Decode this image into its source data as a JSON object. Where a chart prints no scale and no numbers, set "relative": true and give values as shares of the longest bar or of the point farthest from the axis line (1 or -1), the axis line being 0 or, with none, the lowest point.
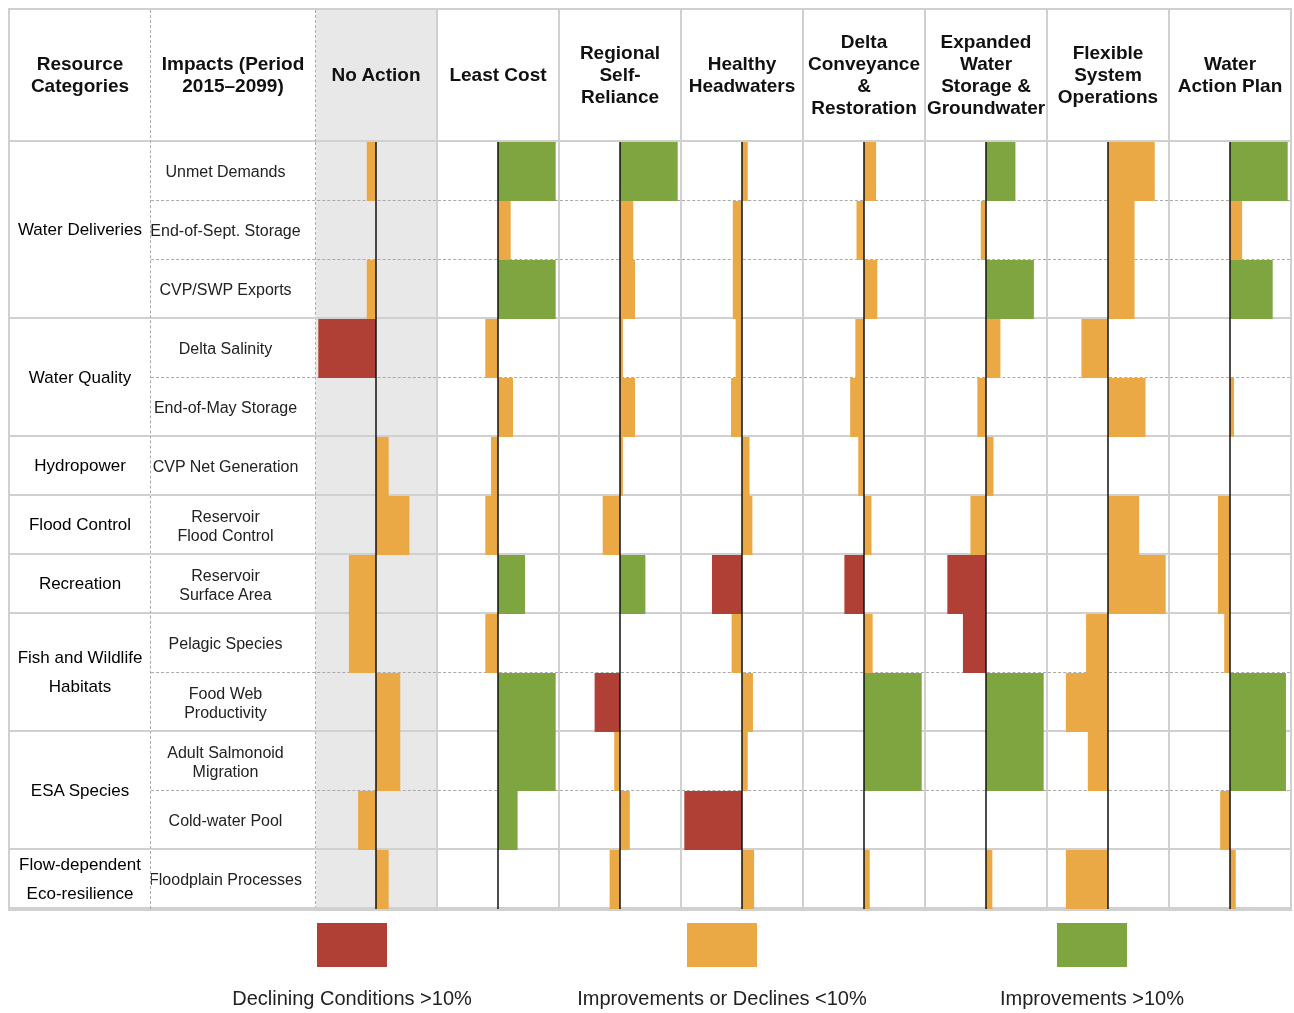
{
  "chart_data": [
    {
      "type": "bar",
      "orientation": "horizontal",
      "stacked": true,
      "relative": true,
      "tick_labels": "y",
      "title": "No Action",
      "ylabel": "Impacts (Period 2015–2099)",
      "annotations": [
        "Resource Categories",
        "Water Deliveries",
        "Water Quality",
        "Hydropower",
        "Flood Control",
        "Recreation",
        "Fish and Wildlife Habitats",
        "ESA Species",
        "Flow-dependent Eco-resilience"
      ],
      "categories": [
        "Unmet Demands",
        "End-of-Sept. Storage",
        "CVP/SWP Exports",
        "Delta Salinity",
        "End-of-May Storage",
        "CVP Net Generation",
        "Reservoir Flood Control",
        "Reservoir Surface Area",
        "Pelagic Species",
        "Food Web Productivity",
        "Adult Salmonoid Migration",
        "Cold-water Pool",
        "Floodplain Processes"
      ],
      "series": [
        {
          "color": "#b03f35",
          "values": [
            null,
            null,
            null,
            -1,
            null,
            null,
            null,
            null,
            null,
            null,
            null,
            null,
            null
          ]
        },
        {
          "color": "#eaa945",
          "values": [
            -0.16,
            null,
            -0.16,
            null,
            null,
            0.22,
            0.58,
            -0.47,
            -0.47,
            0.42,
            0.42,
            -0.31,
            0.22
          ]
        }
      ]
    },
    {
      "type": "bar",
      "orientation": "horizontal",
      "stacked": true,
      "relative": true,
      "tick_labels": false,
      "title": "Least Cost",
      "categories": [
        null,
        null,
        null,
        null,
        null,
        null,
        null,
        null,
        null,
        null,
        null,
        null,
        null
      ],
      "series": [
        {
          "color": "#eaa945",
          "values": [
            null,
            0.22,
            null,
            -0.22,
            0.26,
            -0.12,
            -0.22,
            null,
            -0.22,
            null,
            null,
            null,
            null
          ]
        },
        {
          "color": "#7ea53f",
          "values": [
            1,
            null,
            1,
            null,
            null,
            null,
            null,
            0.47,
            null,
            1,
            1,
            0.34,
            null
          ]
        }
      ]
    },
    {
      "type": "bar",
      "orientation": "horizontal",
      "stacked": true,
      "relative": true,
      "tick_labels": false,
      "title": "Regional Self-Reliance",
      "legend": "bottom",
      "categories": [
        null,
        null,
        null,
        null,
        null,
        null,
        null,
        null,
        null,
        null,
        null,
        null,
        null
      ],
      "series": [
        {
          "name": "Declining Conditions >10%",
          "color": "#b03f35",
          "values": [
            null,
            null,
            null,
            null,
            null,
            null,
            null,
            null,
            null,
            -0.44,
            null,
            null,
            null
          ]
        },
        {
          "name": "Improvements or Declines <10%",
          "color": "#eaa945",
          "values": [
            null,
            0.23,
            0.26,
            0.05,
            0.26,
            0.05,
            -0.3,
            null,
            null,
            null,
            -0.1,
            0.17,
            -0.18
          ]
        },
        {
          "name": "Improvements >10%",
          "color": "#7ea53f",
          "values": [
            1,
            null,
            null,
            null,
            null,
            null,
            null,
            0.44,
            null,
            null,
            null,
            null,
            null
          ]
        }
      ]
    },
    {
      "type": "bar",
      "orientation": "horizontal",
      "stacked": true,
      "relative": true,
      "tick_labels": false,
      "title": "Healthy Headwaters",
      "categories": [
        null,
        null,
        null,
        null,
        null,
        null,
        null,
        null,
        null,
        null,
        null,
        null,
        null
      ],
      "series": [
        {
          "color": "#b03f35",
          "values": [
            null,
            null,
            null,
            null,
            null,
            null,
            null,
            -0.52,
            null,
            null,
            null,
            -1,
            null
          ]
        },
        {
          "color": "#eaa945",
          "values": [
            0.1,
            -0.16,
            -0.16,
            -0.11,
            -0.19,
            0.13,
            0.18,
            null,
            -0.18,
            0.19,
            0.1,
            null,
            0.21
          ]
        }
      ]
    },
    {
      "type": "bar",
      "orientation": "horizontal",
      "stacked": true,
      "relative": true,
      "tick_labels": false,
      "title": "Delta Conveyance & Restoration",
      "categories": [
        null,
        null,
        null,
        null,
        null,
        null,
        null,
        null,
        null,
        null,
        null,
        null,
        null
      ],
      "series": [
        {
          "color": "#b03f35",
          "values": [
            null,
            null,
            null,
            null,
            null,
            null,
            null,
            -0.34,
            null,
            null,
            null,
            null,
            null
          ]
        },
        {
          "color": "#eaa945",
          "values": [
            0.21,
            -0.13,
            0.23,
            -0.15,
            -0.24,
            -0.1,
            0.13,
            null,
            0.15,
            null,
            null,
            null,
            0.1
          ]
        },
        {
          "color": "#7ea53f",
          "values": [
            null,
            null,
            null,
            null,
            null,
            null,
            null,
            null,
            null,
            1,
            1,
            null,
            null
          ]
        }
      ]
    },
    {
      "type": "bar",
      "orientation": "horizontal",
      "stacked": true,
      "relative": true,
      "tick_labels": false,
      "title": "Expanded Water Storage & Groundwater",
      "categories": [
        null,
        null,
        null,
        null,
        null,
        null,
        null,
        null,
        null,
        null,
        null,
        null,
        null
      ],
      "series": [
        {
          "color": "#b03f35",
          "values": [
            null,
            null,
            null,
            null,
            null,
            null,
            null,
            -0.67,
            -0.4,
            null,
            null,
            null,
            null
          ]
        },
        {
          "color": "#eaa945",
          "values": [
            null,
            -0.09,
            null,
            0.25,
            -0.15,
            0.13,
            -0.27,
            null,
            null,
            null,
            null,
            null,
            0.11
          ]
        },
        {
          "color": "#7ea53f",
          "values": [
            0.51,
            null,
            0.83,
            null,
            null,
            null,
            null,
            null,
            null,
            1,
            1,
            null,
            null
          ]
        }
      ]
    },
    {
      "type": "bar",
      "orientation": "horizontal",
      "stacked": true,
      "relative": true,
      "tick_labels": false,
      "title": "Flexible System Operations",
      "categories": [
        null,
        null,
        null,
        null,
        null,
        null,
        null,
        null,
        null,
        null,
        null,
        null,
        null
      ],
      "series": [
        {
          "color": "#eaa945",
          "values": [
            0.81,
            0.46,
            0.46,
            -0.46,
            0.65,
            null,
            0.54,
            1,
            -0.38,
            -0.73,
            -0.35,
            null,
            -0.73
          ]
        }
      ]
    },
    {
      "type": "bar",
      "orientation": "horizontal",
      "stacked": true,
      "relative": true,
      "tick_labels": false,
      "title": "Water Action Plan",
      "categories": [
        null,
        null,
        null,
        null,
        null,
        null,
        null,
        null,
        null,
        null,
        null,
        null,
        null
      ],
      "series": [
        {
          "color": "#eaa945",
          "values": [
            null,
            0.21,
            null,
            null,
            0.07,
            null,
            -0.21,
            -0.21,
            -0.1,
            null,
            null,
            -0.17,
            0.1
          ]
        },
        {
          "color": "#7ea53f",
          "values": [
            1,
            null,
            0.74,
            null,
            null,
            null,
            null,
            null,
            null,
            0.97,
            0.97,
            null,
            null
          ]
        }
      ]
    }
  ]
}
